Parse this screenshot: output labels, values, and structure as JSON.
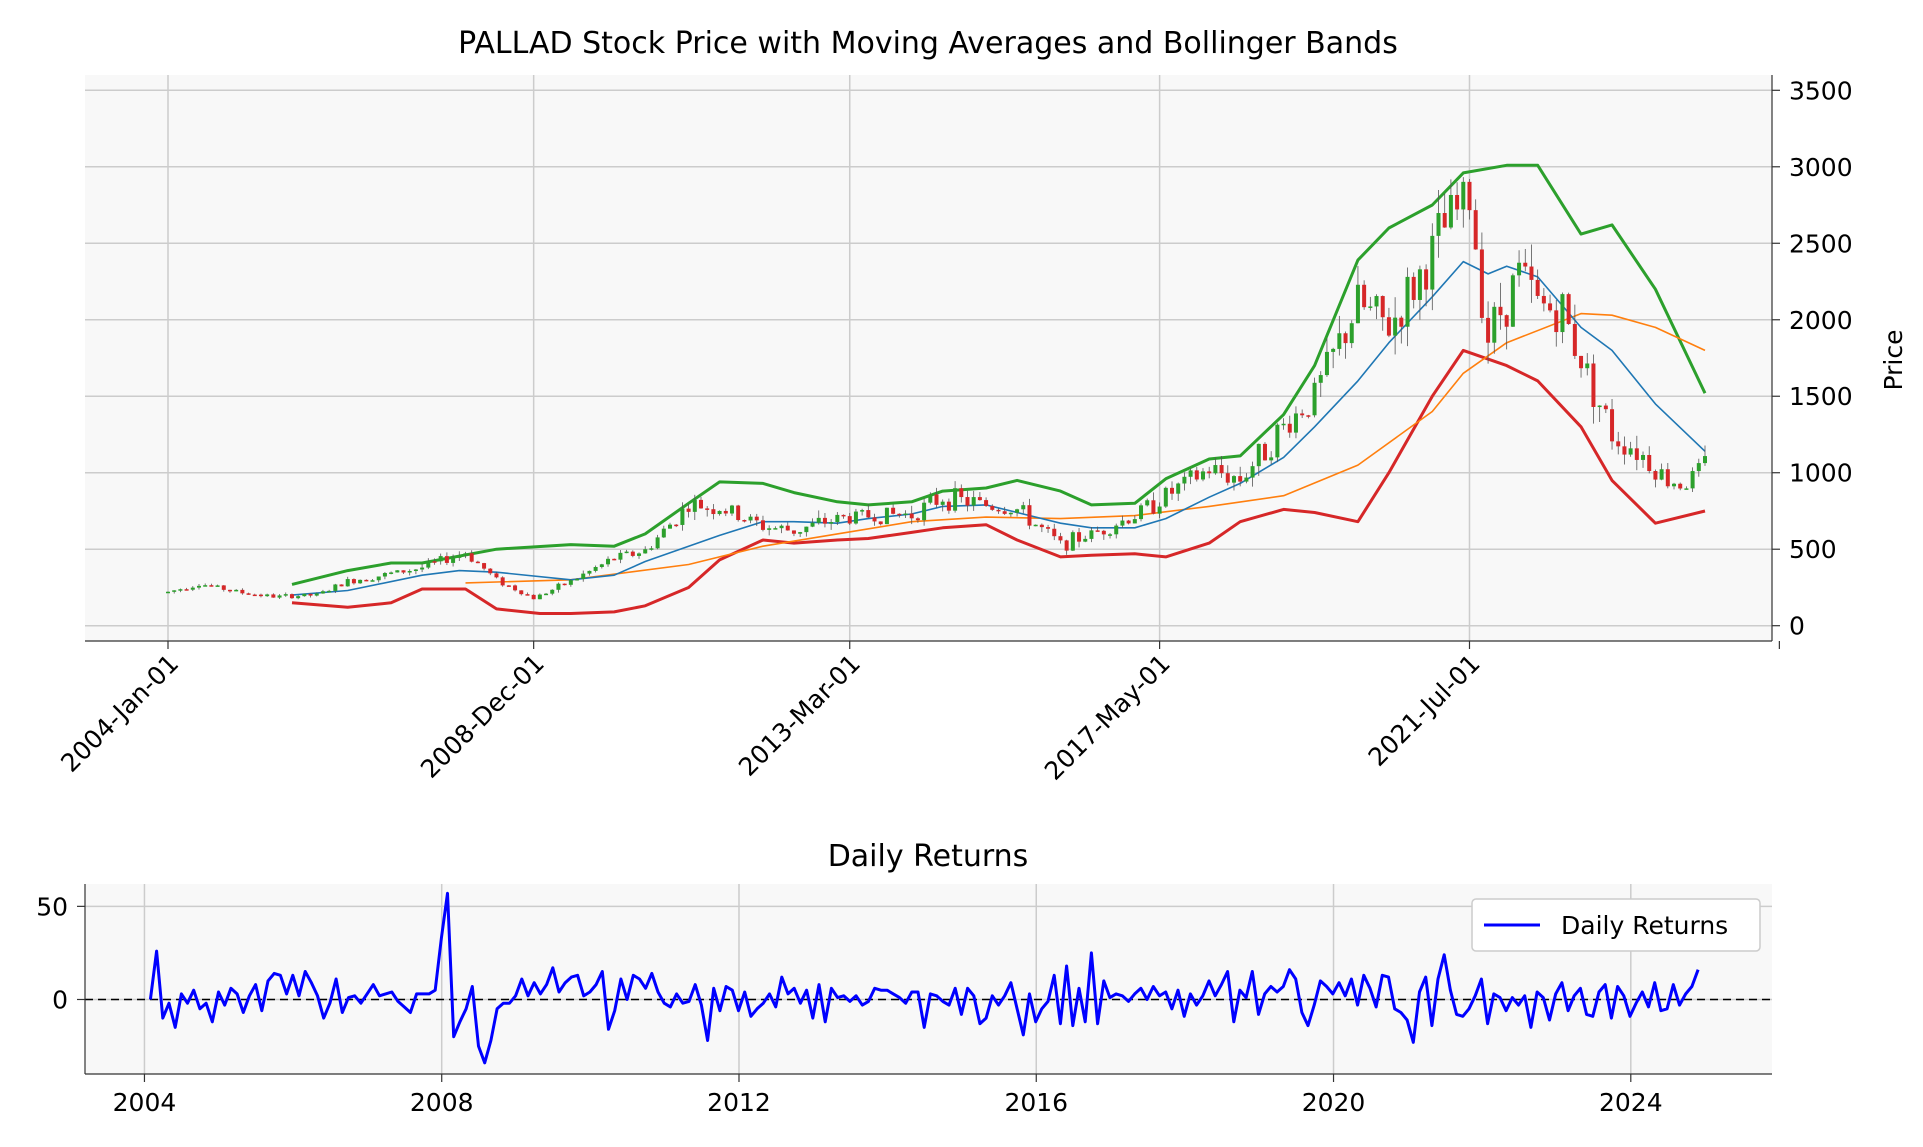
{
  "chart_data": [
    {
      "type": "candlestick",
      "title": "PALLAD Stock Price with Moving Averages and Bollinger Bands",
      "xlabel": "",
      "ylabel": "Price",
      "x_range": [
        "2004-01-01",
        "2024-09-01"
      ],
      "x_tick_labels": [
        "2004-Jan-01",
        "2008-Dec-01",
        "2013-Mar-01",
        "2017-May-01",
        "2021-Jul-01"
      ],
      "x_tick_dates": [
        "2004-01-01",
        "2008-12-01",
        "2013-03-01",
        "2017-05-01",
        "2021-07-01"
      ],
      "ylim": [
        -100,
        3600
      ],
      "y_ticks": [
        0,
        500,
        1000,
        1500,
        2000,
        2500,
        3000,
        3500
      ],
      "y_axis_side": "right",
      "grid": true,
      "colors": {
        "up": "#2ca02c",
        "down": "#d62728",
        "wick": "#555555",
        "sma_short": "#1f77b4",
        "sma_long": "#ff7f0e",
        "bb_upper": "#2ca02c",
        "bb_lower": "#d62728",
        "background": "#f8f8f8",
        "grid": "#cccccc"
      },
      "close_path": [
        [
          "2004-01-01",
          220
        ],
        [
          "2004-06-01",
          275
        ],
        [
          "2005-01-01",
          215
        ],
        [
          "2005-06-01",
          190
        ],
        [
          "2006-01-01",
          200
        ],
        [
          "2006-06-01",
          290
        ],
        [
          "2007-01-01",
          340
        ],
        [
          "2007-06-01",
          380
        ],
        [
          "2008-01-01",
          480
        ],
        [
          "2008-06-01",
          300
        ],
        [
          "2008-12-01",
          180
        ],
        [
          "2009-06-01",
          290
        ],
        [
          "2010-01-01",
          440
        ],
        [
          "2010-06-01",
          490
        ],
        [
          "2011-01-01",
          790
        ],
        [
          "2011-06-01",
          770
        ],
        [
          "2012-01-01",
          650
        ],
        [
          "2012-06-01",
          620
        ],
        [
          "2013-01-01",
          700
        ],
        [
          "2013-06-01",
          720
        ],
        [
          "2014-01-01",
          730
        ],
        [
          "2014-06-01",
          840
        ],
        [
          "2015-01-01",
          790
        ],
        [
          "2015-06-01",
          760
        ],
        [
          "2016-01-01",
          530
        ],
        [
          "2016-06-01",
          600
        ],
        [
          "2017-01-01",
          720
        ],
        [
          "2017-06-01",
          850
        ],
        [
          "2018-01-01",
          1020
        ],
        [
          "2018-06-01",
          960
        ],
        [
          "2019-01-01",
          1300
        ],
        [
          "2019-06-01",
          1500
        ],
        [
          "2020-01-01",
          2100
        ],
        [
          "2020-06-01",
          1950
        ],
        [
          "2020-12-01",
          2350
        ],
        [
          "2021-03-01",
          2600
        ],
        [
          "2021-07-01",
          2800
        ],
        [
          "2021-10-01",
          1900
        ],
        [
          "2022-03-01",
          2300
        ],
        [
          "2022-06-01",
          2100
        ],
        [
          "2022-10-01",
          2050
        ],
        [
          "2023-03-01",
          1550
        ],
        [
          "2023-06-01",
          1250
        ],
        [
          "2023-10-01",
          1150
        ],
        [
          "2024-03-01",
          950
        ],
        [
          "2024-06-01",
          930
        ],
        [
          "2024-09-01",
          1050
        ]
      ],
      "series": [
        {
          "role": "sma_short",
          "points": [
            [
              "2005-09-01",
              200
            ],
            [
              "2006-06-01",
              230
            ],
            [
              "2007-06-01",
              330
            ],
            [
              "2007-12-01",
              360
            ],
            [
              "2008-06-01",
              350
            ],
            [
              "2009-06-01",
              300
            ],
            [
              "2010-01-01",
              330
            ],
            [
              "2010-06-01",
              420
            ],
            [
              "2011-06-01",
              590
            ],
            [
              "2012-01-01",
              680
            ],
            [
              "2012-06-01",
              680
            ],
            [
              "2013-01-01",
              670
            ],
            [
              "2013-06-01",
              700
            ],
            [
              "2014-01-01",
              730
            ],
            [
              "2014-06-01",
              780
            ],
            [
              "2015-01-01",
              790
            ],
            [
              "2015-06-01",
              740
            ],
            [
              "2016-01-01",
              670
            ],
            [
              "2016-06-01",
              640
            ],
            [
              "2017-01-01",
              640
            ],
            [
              "2017-06-01",
              700
            ],
            [
              "2018-01-01",
              840
            ],
            [
              "2018-06-01",
              930
            ],
            [
              "2019-01-01",
              1100
            ],
            [
              "2019-06-01",
              1300
            ],
            [
              "2020-01-01",
              1600
            ],
            [
              "2020-06-01",
              1850
            ],
            [
              "2021-01-01",
              2150
            ],
            [
              "2021-06-01",
              2380
            ],
            [
              "2021-10-01",
              2300
            ],
            [
              "2022-01-01",
              2350
            ],
            [
              "2022-06-01",
              2280
            ],
            [
              "2023-01-01",
              1950
            ],
            [
              "2023-06-01",
              1800
            ],
            [
              "2024-01-01",
              1450
            ],
            [
              "2024-09-01",
              1140
            ]
          ]
        },
        {
          "role": "sma_long",
          "points": [
            [
              "2008-01-01",
              280
            ],
            [
              "2009-06-01",
              300
            ],
            [
              "2011-01-01",
              400
            ],
            [
              "2012-01-01",
              520
            ],
            [
              "2013-01-01",
              600
            ],
            [
              "2014-01-01",
              680
            ],
            [
              "2015-01-01",
              710
            ],
            [
              "2016-01-01",
              700
            ],
            [
              "2017-01-01",
              720
            ],
            [
              "2018-01-01",
              780
            ],
            [
              "2019-01-01",
              850
            ],
            [
              "2020-01-01",
              1050
            ],
            [
              "2021-01-01",
              1400
            ],
            [
              "2021-06-01",
              1650
            ],
            [
              "2022-01-01",
              1850
            ],
            [
              "2023-01-01",
              2040
            ],
            [
              "2023-06-01",
              2030
            ],
            [
              "2024-01-01",
              1950
            ],
            [
              "2024-09-01",
              1800
            ]
          ]
        },
        {
          "role": "bb_upper",
          "points": [
            [
              "2005-09-01",
              270
            ],
            [
              "2006-06-01",
              360
            ],
            [
              "2007-01-01",
              410
            ],
            [
              "2007-06-01",
              410
            ],
            [
              "2008-06-01",
              500
            ],
            [
              "2009-06-01",
              530
            ],
            [
              "2010-01-01",
              520
            ],
            [
              "2010-06-01",
              600
            ],
            [
              "2011-01-01",
              800
            ],
            [
              "2011-06-01",
              940
            ],
            [
              "2012-01-01",
              930
            ],
            [
              "2012-06-01",
              870
            ],
            [
              "2013-01-01",
              810
            ],
            [
              "2013-06-01",
              790
            ],
            [
              "2014-01-01",
              810
            ],
            [
              "2014-06-01",
              880
            ],
            [
              "2015-01-01",
              900
            ],
            [
              "2015-06-01",
              950
            ],
            [
              "2016-01-01",
              880
            ],
            [
              "2016-06-01",
              790
            ],
            [
              "2017-01-01",
              800
            ],
            [
              "2017-06-01",
              960
            ],
            [
              "2018-01-01",
              1090
            ],
            [
              "2018-06-01",
              1110
            ],
            [
              "2019-01-01",
              1380
            ],
            [
              "2019-06-01",
              1700
            ],
            [
              "2020-01-01",
              2390
            ],
            [
              "2020-06-01",
              2600
            ],
            [
              "2021-01-01",
              2750
            ],
            [
              "2021-06-01",
              2960
            ],
            [
              "2022-01-01",
              3010
            ],
            [
              "2022-06-01",
              3010
            ],
            [
              "2023-01-01",
              2560
            ],
            [
              "2023-06-01",
              2620
            ],
            [
              "2024-01-01",
              2200
            ],
            [
              "2024-09-01",
              1520
            ]
          ]
        },
        {
          "role": "bb_lower",
          "points": [
            [
              "2005-09-01",
              150
            ],
            [
              "2006-06-01",
              120
            ],
            [
              "2007-01-01",
              150
            ],
            [
              "2007-06-01",
              240
            ],
            [
              "2008-01-01",
              240
            ],
            [
              "2008-06-01",
              110
            ],
            [
              "2009-01-01",
              80
            ],
            [
              "2009-06-01",
              80
            ],
            [
              "2010-01-01",
              90
            ],
            [
              "2010-06-01",
              130
            ],
            [
              "2011-01-01",
              250
            ],
            [
              "2011-06-01",
              430
            ],
            [
              "2012-01-01",
              560
            ],
            [
              "2012-06-01",
              540
            ],
            [
              "2013-01-01",
              560
            ],
            [
              "2013-06-01",
              570
            ],
            [
              "2014-01-01",
              610
            ],
            [
              "2014-06-01",
              640
            ],
            [
              "2015-01-01",
              660
            ],
            [
              "2015-06-01",
              560
            ],
            [
              "2016-01-01",
              450
            ],
            [
              "2016-06-01",
              460
            ],
            [
              "2017-01-01",
              470
            ],
            [
              "2017-06-01",
              450
            ],
            [
              "2018-01-01",
              540
            ],
            [
              "2018-06-01",
              680
            ],
            [
              "2019-01-01",
              760
            ],
            [
              "2019-06-01",
              740
            ],
            [
              "2020-01-01",
              680
            ],
            [
              "2020-06-01",
              1000
            ],
            [
              "2021-01-01",
              1500
            ],
            [
              "2021-06-01",
              1800
            ],
            [
              "2022-01-01",
              1700
            ],
            [
              "2022-06-01",
              1600
            ],
            [
              "2023-01-01",
              1300
            ],
            [
              "2023-06-01",
              950
            ],
            [
              "2024-01-01",
              670
            ],
            [
              "2024-09-01",
              750
            ]
          ]
        }
      ]
    },
    {
      "type": "line",
      "title": "Daily Returns",
      "xlabel": "",
      "ylabel": "",
      "x_range": [
        2003.2,
        2025.9
      ],
      "x_ticks": [
        2004,
        2008,
        2012,
        2016,
        2020,
        2024
      ],
      "ylim": [
        -40,
        62
      ],
      "y_ticks": [
        0,
        50
      ],
      "zero_line": "dashed",
      "legend": "upper right",
      "grid": true,
      "series": [
        {
          "name": "Daily Returns",
          "color": "#0000ff",
          "x_start": 2004.08,
          "x_step": 0.0833,
          "values": [
            0,
            26,
            -10,
            -2,
            -15,
            3,
            -2,
            5,
            -5,
            -2,
            -12,
            4,
            -3,
            6,
            3,
            -7,
            2,
            8,
            -6,
            10,
            14,
            13,
            3,
            13,
            2,
            15,
            9,
            2,
            -10,
            -2,
            11,
            -7,
            1,
            2,
            -2,
            3,
            8,
            2,
            3,
            4,
            -1,
            -4,
            -7,
            3,
            3,
            3,
            5,
            33,
            57,
            -20,
            -12,
            -5,
            7,
            -25,
            -34,
            -22,
            -5,
            -2,
            -2,
            2,
            11,
            2,
            9,
            3,
            8,
            17,
            4,
            9,
            12,
            13,
            2,
            4,
            8,
            15,
            -16,
            -6,
            11,
            0,
            13,
            11,
            6,
            14,
            4,
            -2,
            -4,
            3,
            -2,
            -1,
            8,
            -3,
            -22,
            6,
            -6,
            7,
            5,
            -6,
            4,
            -9,
            -5,
            -2,
            3,
            -4,
            12,
            3,
            6,
            -2,
            5,
            -10,
            8,
            -12,
            6,
            1,
            2,
            -1,
            2,
            -3,
            -1,
            6,
            5,
            5,
            3,
            1,
            -2,
            4,
            4,
            -15,
            3,
            2,
            -1,
            -3,
            6,
            -8,
            6,
            2,
            -13,
            -10,
            2,
            -3,
            2,
            9,
            -5,
            -19,
            3,
            -12,
            -5,
            -1,
            13,
            -13,
            18,
            -14,
            6,
            -12,
            25,
            -13,
            10,
            1,
            3,
            2,
            -1,
            3,
            6,
            0,
            7,
            2,
            4,
            -5,
            5,
            -9,
            3,
            -3,
            2,
            10,
            2,
            8,
            15,
            -12,
            5,
            1,
            15,
            -8,
            3,
            7,
            4,
            7,
            16,
            11,
            -7,
            -14,
            -3,
            10,
            7,
            3,
            9,
            2,
            11,
            -3,
            13,
            6,
            -4,
            13,
            12,
            -5,
            -7,
            -11,
            -23,
            4,
            12,
            -14,
            11,
            24,
            5,
            -8,
            -9,
            -5,
            2,
            11,
            -13,
            3,
            1,
            -6,
            1,
            -3,
            2,
            -15,
            4,
            1,
            -11,
            3,
            9,
            -6,
            2,
            6,
            -8,
            -9,
            4,
            8,
            -10,
            7,
            2,
            -9,
            -2,
            4,
            -4,
            9,
            -6,
            -5,
            8,
            -3,
            3,
            7,
            16
          ]
        }
      ]
    }
  ]
}
